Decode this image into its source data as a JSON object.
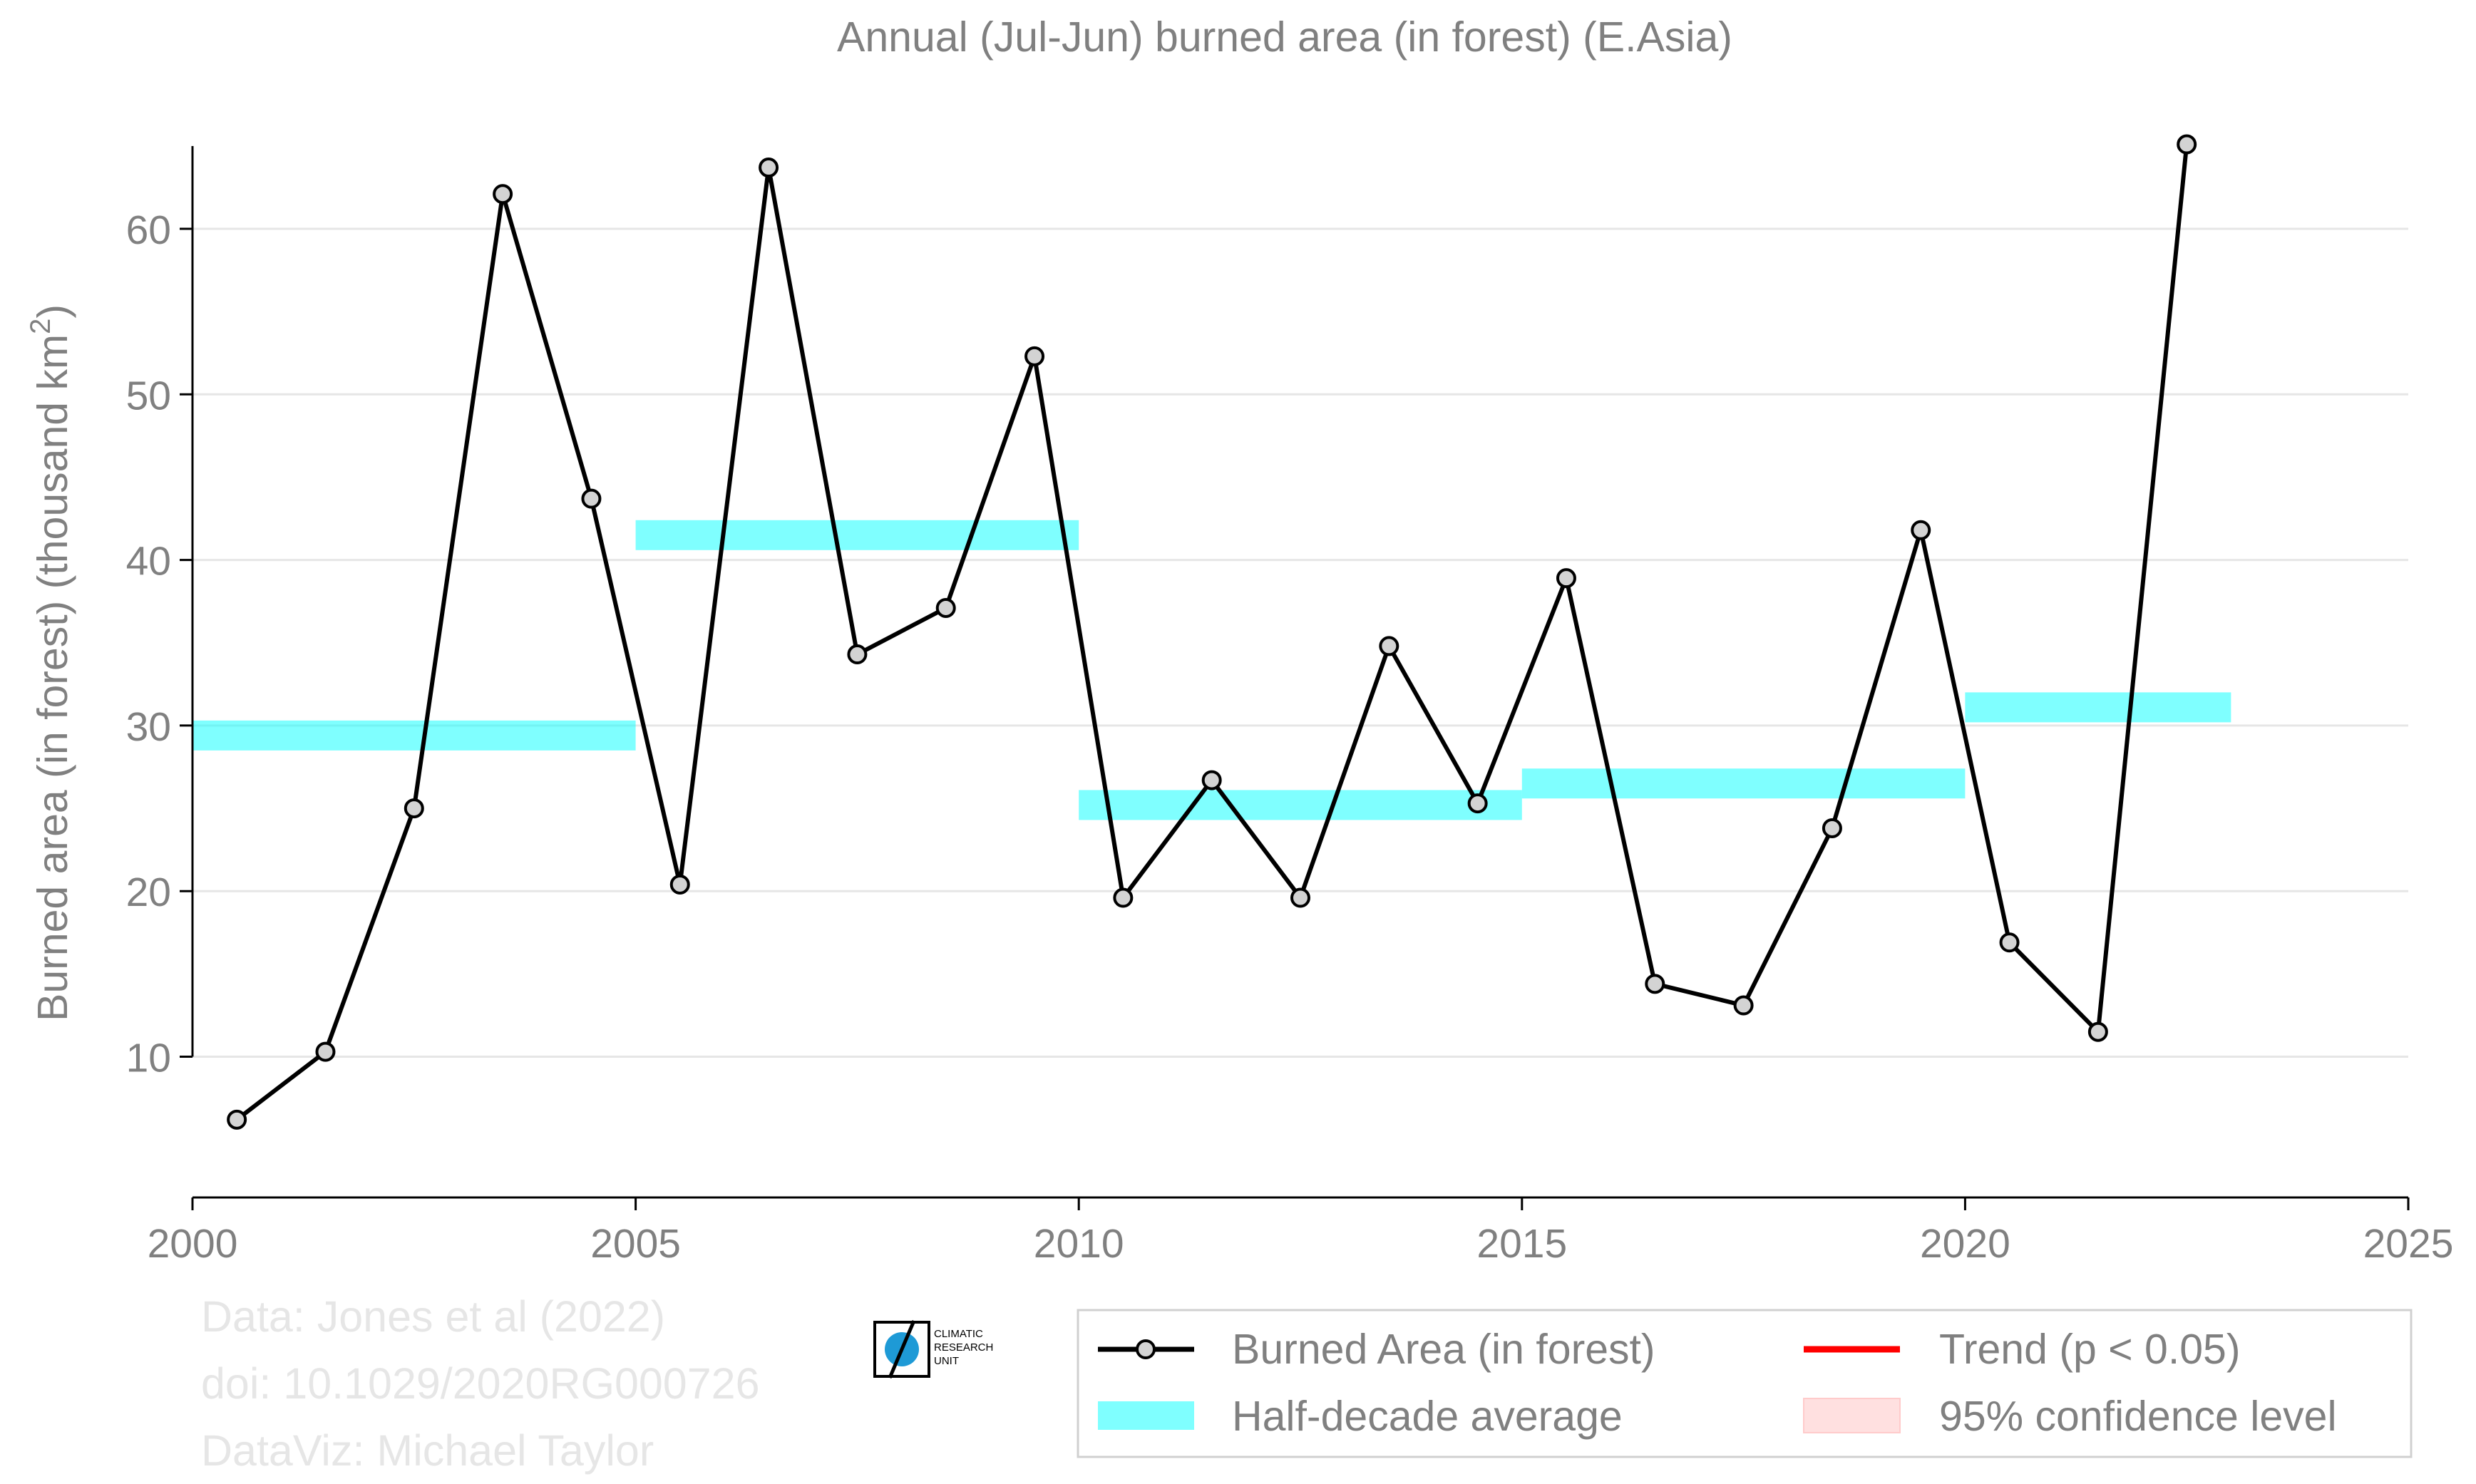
{
  "chart_data": {
    "type": "line",
    "title": "Annual (Jul-Jun) burned area (in forest) (E.Asia)",
    "ylabel": "Burned area (in forest) (thousand km",
    "ylabel_sup": "2",
    "ylabel_close": ")",
    "xlabel": "",
    "xlim": [
      2000,
      2025
    ],
    "ylim": [
      1.5,
      66.5
    ],
    "xticks": [
      "2000",
      "2005",
      "2010",
      "2015",
      "2020",
      "2025"
    ],
    "yticks": [
      "10",
      "20",
      "30",
      "40",
      "50",
      "60"
    ],
    "grid": "horizontal",
    "legend_position": "bottom-right",
    "series": [
      {
        "name": "Burned Area (in forest)",
        "color": "#000000",
        "marker_fill": "#d3d3d3",
        "x": [
          2000.5,
          2001.5,
          2002.5,
          2003.5,
          2004.5,
          2005.5,
          2006.5,
          2007.5,
          2008.5,
          2009.5,
          2010.5,
          2011.5,
          2012.5,
          2013.5,
          2014.5,
          2015.5,
          2016.5,
          2017.5,
          2018.5,
          2019.5,
          2020.5,
          2021.5,
          2022.5
        ],
        "values": [
          6.2,
          10.3,
          25.0,
          62.1,
          43.7,
          20.4,
          63.7,
          34.3,
          37.1,
          52.3,
          19.6,
          26.7,
          19.6,
          34.8,
          25.3,
          38.9,
          14.4,
          13.1,
          23.8,
          41.8,
          16.9,
          11.5,
          65.1
        ]
      }
    ],
    "half_decade_averages": {
      "name": "Half-decade average",
      "color": "#00ffff",
      "segments": [
        {
          "x_start": 2000,
          "x_end": 2005,
          "value": 29.4
        },
        {
          "x_start": 2005,
          "x_end": 2010,
          "value": 41.5
        },
        {
          "x_start": 2010,
          "x_end": 2015,
          "value": 25.2
        },
        {
          "x_start": 2015,
          "x_end": 2020,
          "value": 26.5
        },
        {
          "x_start": 2020,
          "x_end": 2023,
          "value": 31.1
        }
      ]
    },
    "legend": [
      {
        "label": "Burned Area (in forest)",
        "kind": "line-marker",
        "color": "#000000"
      },
      {
        "label": "Trend (p < 0.05)",
        "kind": "line",
        "color": "#ff0000"
      },
      {
        "label": "Half-decade average",
        "kind": "band",
        "color": "#00ffff"
      },
      {
        "label": "95% confidence level",
        "kind": "patch",
        "color": "#ffcccc"
      }
    ]
  },
  "credits": {
    "line1": "Data: Jones et al (2022)",
    "line2": "doi: 10.1029/2020RG000726",
    "line3": "DataViz: Michael Taylor"
  },
  "logo": {
    "line1": "CLIMATIC",
    "line2": "RESEARCH",
    "line3": "UNIT",
    "color": "#1e9ad6"
  }
}
